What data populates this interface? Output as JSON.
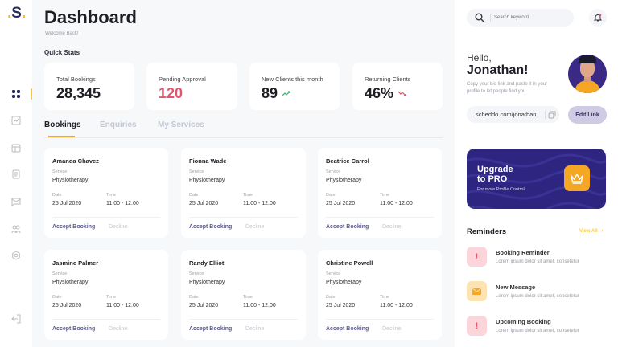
{
  "brand": {
    "logo": "S"
  },
  "sidebar": {
    "items": [
      {
        "icon": "grid-icon",
        "active": true
      },
      {
        "icon": "chart-icon"
      },
      {
        "icon": "calendar-icon"
      },
      {
        "icon": "document-icon"
      },
      {
        "icon": "message-icon"
      },
      {
        "icon": "users-icon"
      },
      {
        "icon": "settings-icon"
      }
    ],
    "logout_icon": "logout-icon"
  },
  "header": {
    "title": "Dashboard",
    "subtitle": "Welcome Back!"
  },
  "quick_stats": {
    "title": "Quick Stats",
    "items": [
      {
        "label": "Total Bookings",
        "value": "28,345",
        "color": "#1d1d24"
      },
      {
        "label": "Pending Approval",
        "value": "120",
        "color": "#e0566b"
      },
      {
        "label": "New Clients this month",
        "value": "89",
        "trend": "up",
        "trend_color": "#2fb36b"
      },
      {
        "label": "Returning Clients",
        "value": "46%",
        "trend": "down",
        "trend_color": "#e0566b"
      }
    ]
  },
  "tabs": [
    {
      "label": "Bookings",
      "active": true
    },
    {
      "label": "Enquiries"
    },
    {
      "label": "My Services"
    }
  ],
  "booking_labels": {
    "service": "Service",
    "date": "Date",
    "time": "Time",
    "accept": "Accept Booking",
    "decline": "Decline"
  },
  "bookings": [
    {
      "name": "Amanda Chavez",
      "service": "Physiotherapy",
      "date": "25 Jul 2020",
      "time": "11:00 - 12:00"
    },
    {
      "name": "Fionna Wade",
      "service": "Physiotherapy",
      "date": "25 Jul 2020",
      "time": "11:00 - 12:00"
    },
    {
      "name": "Beatrice Carrol",
      "service": "Physiotherapy",
      "date": "25 Jul 2020",
      "time": "11:00 - 12:00"
    },
    {
      "name": "Jasmine Palmer",
      "service": "Physiotherapy",
      "date": "25 Jul 2020",
      "time": "11:00 - 12:00"
    },
    {
      "name": "Randy Elliot",
      "service": "Physiotherapy",
      "date": "25 Jul 2020",
      "time": "11:00 - 12:00"
    },
    {
      "name": "Christine Powell",
      "service": "Physiotherapy",
      "date": "25 Jul 2020",
      "time": "11:00 - 12:00"
    }
  ],
  "search": {
    "placeholder": "Search keyword"
  },
  "profile": {
    "greeting": "Hello,",
    "name": "Jonathan!",
    "desc": "Copy your bio link and paste it in your profile to let people find you.",
    "link": "scheddo.com/jonathan",
    "edit_label": "Edit Link"
  },
  "upgrade": {
    "title1": "Upgrade",
    "title2": "to PRO",
    "sub": "For more Profile Control",
    "bg": "#2d2580",
    "icon_bg": "#f5a623"
  },
  "reminders": {
    "title": "Reminders",
    "view_all": "View All",
    "items": [
      {
        "title": "Booking Reminder",
        "desc": "Lorem ipsum dolor sit amet, consetetur",
        "icon": "alert-icon",
        "bg": "#fbd5da",
        "fg": "#e0566b"
      },
      {
        "title": "New Message",
        "desc": "Lorem ipsum dolor sit amet, consetetur",
        "icon": "mail-icon",
        "bg": "#fde3b0",
        "fg": "#f5a623"
      },
      {
        "title": "Upcoming Booking",
        "desc": "Lorem ipsum dolor sit amet, consetetur",
        "icon": "alert-icon",
        "bg": "#fbd5da",
        "fg": "#e0566b"
      }
    ]
  },
  "colors": {
    "accent": "#f5c842",
    "primary": "#2d2580",
    "tab_underline": "#f5a623"
  }
}
